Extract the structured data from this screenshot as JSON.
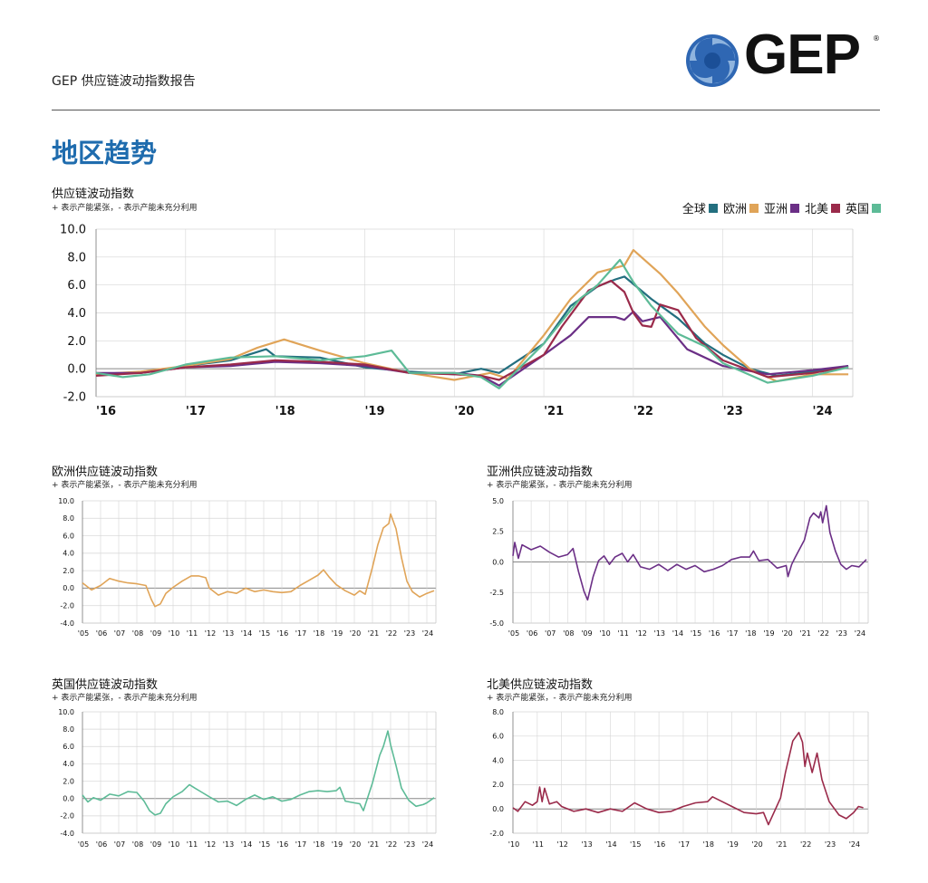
{
  "header": {
    "title": "GEP 供应链波动指数报告",
    "logo_text": "GEP",
    "logo_reg": "®"
  },
  "section": {
    "title": "地区趋势"
  },
  "colors": {
    "global": "#236f7f",
    "europe": "#e0a458",
    "asia": "#6b2f86",
    "northamerica": "#9a2a4a",
    "uk": "#5dbb97",
    "zero_line": "#888888",
    "grid": "#d6d6d6"
  },
  "chart_data": [
    {
      "id": "main",
      "type": "line",
      "title": "供应链波动指数",
      "subtitle": "+ 表示产能紧张，- 表示产能未充分利用",
      "ylim": [
        -2,
        10
      ],
      "yticks": [
        "10.0",
        "8.0",
        "6.0",
        "4.0",
        "2.0",
        "0.0",
        "-2.0"
      ],
      "ytick_values": [
        10,
        8,
        6,
        4,
        2,
        0,
        -2
      ],
      "xlim": [
        2016,
        2024.45
      ],
      "xticks": [
        "'16",
        "'17",
        "'18",
        "'19",
        "'20",
        "'21",
        "'22",
        "'23",
        "'24"
      ],
      "xtick_values": [
        2016,
        2017,
        2018,
        2019,
        2020,
        2021,
        2022,
        2023,
        2024
      ],
      "legend": [
        "全球",
        "欧洲",
        "亚洲",
        "北美",
        "英国"
      ],
      "series": [
        {
          "name": "全球",
          "color_key": "global",
          "x": [
            2016,
            2016.5,
            2017,
            2017.5,
            2017.9,
            2018,
            2018.5,
            2019,
            2019.5,
            2020,
            2020.3,
            2020.5,
            2021,
            2021.3,
            2021.6,
            2021.8,
            2021.9,
            2022.2,
            2022.5,
            2022.8,
            2023,
            2023.3,
            2023.6,
            2024,
            2024.4
          ],
          "values": [
            -0.4,
            -0.3,
            0.2,
            0.6,
            1.4,
            0.9,
            0.8,
            0.1,
            -0.2,
            -0.4,
            0.0,
            -0.3,
            1.8,
            4.5,
            5.9,
            6.4,
            6.6,
            5.0,
            3.6,
            1.8,
            1.0,
            0.0,
            -0.5,
            -0.2,
            0.2
          ]
        },
        {
          "name": "欧洲",
          "color_key": "europe",
          "x": [
            2016,
            2016.5,
            2017,
            2017.5,
            2017.8,
            2018.1,
            2018.5,
            2019,
            2019.5,
            2020,
            2020.4,
            2020.6,
            2021,
            2021.3,
            2021.6,
            2021.9,
            2022,
            2022.3,
            2022.5,
            2022.8,
            2023,
            2023.3,
            2023.6,
            2024,
            2024.4
          ],
          "values": [
            -0.4,
            -0.2,
            0.2,
            0.7,
            1.5,
            2.1,
            1.3,
            0.4,
            -0.3,
            -0.8,
            -0.3,
            -0.7,
            2.4,
            5.0,
            6.9,
            7.4,
            8.5,
            6.8,
            5.4,
            3.0,
            1.7,
            0.0,
            -0.9,
            -0.4,
            -0.4
          ]
        },
        {
          "name": "亚洲",
          "color_key": "asia",
          "x": [
            2016,
            2016.5,
            2017,
            2017.5,
            2018,
            2018.5,
            2019,
            2019.5,
            2020,
            2020.3,
            2020.5,
            2021,
            2021.3,
            2021.5,
            2021.8,
            2021.9,
            2022,
            2022.1,
            2022.3,
            2022.6,
            2023,
            2023.5,
            2024,
            2024.4
          ],
          "values": [
            -0.3,
            -0.3,
            0.1,
            0.2,
            0.5,
            0.4,
            0.2,
            -0.3,
            -0.3,
            -0.5,
            -1.2,
            1.0,
            2.4,
            3.7,
            3.7,
            3.5,
            4.1,
            3.4,
            3.7,
            1.4,
            0.2,
            -0.4,
            -0.1,
            0.2
          ]
        },
        {
          "name": "北美",
          "color_key": "northamerica",
          "x": [
            2016,
            2016.5,
            2017,
            2017.5,
            2018,
            2018.5,
            2019,
            2019.5,
            2020,
            2020.3,
            2020.5,
            2021,
            2021.2,
            2021.5,
            2021.75,
            2021.9,
            2022,
            2022.1,
            2022.2,
            2022.3,
            2022.5,
            2022.7,
            2023,
            2023.5,
            2024,
            2024.4
          ],
          "values": [
            -0.5,
            -0.3,
            0.1,
            0.3,
            0.6,
            0.5,
            0.3,
            -0.3,
            -0.4,
            -0.5,
            -0.8,
            1.0,
            3.0,
            5.6,
            6.3,
            5.5,
            4.0,
            3.1,
            3.0,
            4.6,
            4.2,
            2.2,
            0.6,
            -0.6,
            -0.3,
            0.1
          ]
        },
        {
          "name": "英国",
          "color_key": "uk",
          "x": [
            2016,
            2016.3,
            2016.6,
            2017,
            2017.5,
            2018,
            2018.5,
            2019,
            2019.3,
            2019.5,
            2020,
            2020.3,
            2020.5,
            2021,
            2021.4,
            2021.6,
            2021.85,
            2022,
            2022.2,
            2022.5,
            2022.8,
            2023,
            2023.5,
            2024,
            2024.4
          ],
          "values": [
            -0.3,
            -0.6,
            -0.4,
            0.3,
            0.8,
            0.9,
            0.6,
            0.9,
            1.3,
            -0.3,
            -0.3,
            -0.6,
            -1.4,
            1.8,
            5.0,
            6.0,
            7.8,
            6.2,
            4.5,
            2.5,
            1.6,
            0.4,
            -1.0,
            -0.5,
            0.1
          ]
        }
      ]
    },
    {
      "id": "europe",
      "type": "line",
      "title": "欧洲供应链波动指数",
      "subtitle": "+ 表示产能紧张，- 表示产能未充分利用",
      "ylim": [
        -4,
        10
      ],
      "yticks": [
        "10.0",
        "8.0",
        "6.0",
        "4.0",
        "2.0",
        "0.0",
        "-2.0",
        "-4.0"
      ],
      "ytick_values": [
        10,
        8,
        6,
        4,
        2,
        0,
        -2,
        -4
      ],
      "xlim": [
        2005,
        2024.5
      ],
      "xticks": [
        "'05",
        "'06",
        "'07",
        "'08",
        "'09",
        "'10",
        "'11",
        "'12",
        "'13",
        "'14",
        "'15",
        "'16",
        "'17",
        "'18",
        "'19",
        "'20",
        "'21",
        "'22",
        "'23",
        "'24"
      ],
      "xtick_values": [
        2005,
        2006,
        2007,
        2008,
        2009,
        2010,
        2011,
        2012,
        2013,
        2014,
        2015,
        2016,
        2017,
        2018,
        2019,
        2020,
        2021,
        2022,
        2023,
        2024
      ],
      "series": [
        {
          "name": "欧洲",
          "color_key": "europe",
          "x": [
            2005,
            2005.5,
            2006,
            2006.5,
            2007,
            2007.5,
            2008,
            2008.5,
            2008.8,
            2009,
            2009.3,
            2009.6,
            2010,
            2010.5,
            2011,
            2011.4,
            2011.8,
            2012,
            2012.5,
            2013,
            2013.5,
            2014,
            2014.5,
            2015,
            2015.5,
            2016,
            2016.5,
            2017,
            2017.5,
            2018,
            2018.3,
            2018.6,
            2019,
            2019.5,
            2020,
            2020.3,
            2020.6,
            2021,
            2021.3,
            2021.6,
            2021.9,
            2022,
            2022.3,
            2022.6,
            2022.9,
            2023.2,
            2023.6,
            2024,
            2024.4
          ],
          "values": [
            0.6,
            -0.2,
            0.3,
            1.1,
            0.8,
            0.6,
            0.5,
            0.3,
            -1.3,
            -2.1,
            -1.8,
            -0.6,
            0.1,
            0.8,
            1.4,
            1.4,
            1.2,
            0.0,
            -0.8,
            -0.4,
            -0.6,
            0.0,
            -0.4,
            -0.2,
            -0.4,
            -0.5,
            -0.4,
            0.3,
            0.9,
            1.5,
            2.1,
            1.3,
            0.4,
            -0.3,
            -0.8,
            -0.3,
            -0.7,
            2.4,
            5.0,
            6.9,
            7.4,
            8.5,
            6.8,
            3.5,
            0.8,
            -0.4,
            -1.0,
            -0.6,
            -0.3
          ]
        }
      ]
    },
    {
      "id": "asia",
      "type": "line",
      "title": "亚洲供应链波动指数",
      "subtitle": "+ 表示产能紧张，- 表示产能未充分利用",
      "ylim": [
        -5,
        5
      ],
      "yticks": [
        "5.0",
        "2.5",
        "0.0",
        "-2.5",
        "-5.0"
      ],
      "ytick_values": [
        5,
        2.5,
        0,
        -2.5,
        -5
      ],
      "xlim": [
        2005,
        2024.5
      ],
      "xticks": [
        "'05",
        "'06",
        "'07",
        "'08",
        "'09",
        "'10",
        "'11",
        "'12",
        "'13",
        "'14",
        "'15",
        "'16",
        "'17",
        "'18",
        "'19",
        "'20",
        "'21",
        "'22",
        "'23",
        "'24"
      ],
      "xtick_values": [
        2005,
        2006,
        2007,
        2008,
        2009,
        2010,
        2011,
        2012,
        2013,
        2014,
        2015,
        2016,
        2017,
        2018,
        2019,
        2020,
        2021,
        2022,
        2023,
        2024
      ],
      "series": [
        {
          "name": "亚洲",
          "color_key": "asia",
          "x": [
            2005,
            2005.1,
            2005.3,
            2005.5,
            2006,
            2006.5,
            2007,
            2007.5,
            2008,
            2008.3,
            2008.6,
            2008.9,
            2009.1,
            2009.4,
            2009.7,
            2010,
            2010.3,
            2010.6,
            2011,
            2011.3,
            2011.6,
            2012,
            2012.5,
            2013,
            2013.5,
            2014,
            2014.5,
            2015,
            2015.5,
            2016,
            2016.5,
            2017,
            2017.5,
            2018,
            2018.2,
            2018.5,
            2019,
            2019.5,
            2020,
            2020.1,
            2020.3,
            2020.5,
            2021,
            2021.3,
            2021.5,
            2021.8,
            2021.9,
            2022,
            2022.2,
            2022.4,
            2022.7,
            2023,
            2023.3,
            2023.6,
            2024,
            2024.4
          ],
          "values": [
            0.5,
            1.6,
            0.3,
            1.4,
            1.0,
            1.3,
            0.8,
            0.4,
            0.6,
            1.1,
            -0.8,
            -2.4,
            -3.1,
            -1.2,
            0.1,
            0.5,
            -0.2,
            0.4,
            0.7,
            0.0,
            0.6,
            -0.4,
            -0.6,
            -0.2,
            -0.7,
            -0.2,
            -0.6,
            -0.3,
            -0.8,
            -0.6,
            -0.3,
            0.2,
            0.4,
            0.4,
            0.9,
            0.1,
            0.2,
            -0.5,
            -0.3,
            -1.2,
            -0.2,
            0.4,
            1.8,
            3.6,
            4.0,
            3.6,
            4.1,
            3.2,
            4.6,
            2.4,
            0.9,
            -0.2,
            -0.6,
            -0.3,
            -0.4,
            0.2
          ]
        }
      ]
    },
    {
      "id": "uk",
      "type": "line",
      "title": "英国供应链波动指数",
      "subtitle": "+ 表示产能紧张，- 表示产能未充分利用",
      "ylim": [
        -4,
        10
      ],
      "yticks": [
        "10.0",
        "8.0",
        "6.0",
        "4.0",
        "2.0",
        "0.0",
        "-2.0",
        "-4.0"
      ],
      "ytick_values": [
        10,
        8,
        6,
        4,
        2,
        0,
        -2,
        -4
      ],
      "xlim": [
        2005,
        2024.5
      ],
      "xticks": [
        "'05",
        "'06",
        "'07",
        "'08",
        "'09",
        "'10",
        "'11",
        "'12",
        "'13",
        "'14",
        "'15",
        "'16",
        "'17",
        "'18",
        "'19",
        "'20",
        "'21",
        "'22",
        "'23",
        "'24"
      ],
      "xtick_values": [
        2005,
        2006,
        2007,
        2008,
        2009,
        2010,
        2011,
        2012,
        2013,
        2014,
        2015,
        2016,
        2017,
        2018,
        2019,
        2020,
        2021,
        2022,
        2023,
        2024
      ],
      "series": [
        {
          "name": "英国",
          "color_key": "uk",
          "x": [
            2005,
            2005.3,
            2005.6,
            2006,
            2006.5,
            2007,
            2007.5,
            2008,
            2008.4,
            2008.7,
            2009,
            2009.3,
            2009.6,
            2010,
            2010.5,
            2010.9,
            2011.2,
            2011.6,
            2012,
            2012.5,
            2013,
            2013.5,
            2014,
            2014.5,
            2015,
            2015.5,
            2016,
            2016.5,
            2017,
            2017.5,
            2018,
            2018.5,
            2019,
            2019.2,
            2019.5,
            2020,
            2020.3,
            2020.5,
            2021,
            2021.4,
            2021.6,
            2021.85,
            2022,
            2022.3,
            2022.6,
            2023,
            2023.4,
            2023.8,
            2024,
            2024.4
          ],
          "values": [
            0.4,
            -0.4,
            0.1,
            -0.2,
            0.5,
            0.3,
            0.8,
            0.7,
            -0.3,
            -1.4,
            -1.9,
            -1.7,
            -0.6,
            0.2,
            0.8,
            1.6,
            1.2,
            0.7,
            0.2,
            -0.4,
            -0.3,
            -0.8,
            -0.1,
            0.4,
            -0.1,
            0.2,
            -0.3,
            -0.1,
            0.4,
            0.8,
            0.9,
            0.8,
            0.9,
            1.3,
            -0.3,
            -0.5,
            -0.6,
            -1.4,
            1.8,
            5.0,
            6.0,
            7.8,
            6.2,
            3.8,
            1.2,
            -0.2,
            -0.9,
            -0.7,
            -0.5,
            0.1
          ]
        }
      ]
    },
    {
      "id": "northamerica",
      "type": "line",
      "title": "北美供应链波动指数",
      "subtitle": "+ 表示产能紧张，- 表示产能未充分利用",
      "ylim": [
        -2,
        8
      ],
      "yticks": [
        "8.0",
        "6.0",
        "4.0",
        "2.0",
        "0.0",
        "-2.0"
      ],
      "ytick_values": [
        8,
        6,
        4,
        2,
        0,
        -2
      ],
      "xlim": [
        2010,
        2024.6
      ],
      "xticks": [
        "'10",
        "'11",
        "'12",
        "'13",
        "'14",
        "'15",
        "'16",
        "'17",
        "'18",
        "'19",
        "'20",
        "'21",
        "'22",
        "'23",
        "'24"
      ],
      "xtick_values": [
        2010,
        2011,
        2012,
        2013,
        2014,
        2015,
        2016,
        2017,
        2018,
        2019,
        2020,
        2021,
        2022,
        2023,
        2024
      ],
      "series": [
        {
          "name": "北美",
          "color_key": "northamerica",
          "x": [
            2010,
            2010.2,
            2010.5,
            2010.8,
            2011,
            2011.1,
            2011.2,
            2011.3,
            2011.5,
            2011.8,
            2012,
            2012.5,
            2013,
            2013.5,
            2014,
            2014.5,
            2015,
            2015.5,
            2016,
            2016.5,
            2017,
            2017.5,
            2018,
            2018.2,
            2018.5,
            2019,
            2019.5,
            2020,
            2020.3,
            2020.5,
            2021,
            2021.2,
            2021.5,
            2021.75,
            2021.9,
            2022,
            2022.1,
            2022.3,
            2022.5,
            2022.7,
            2023,
            2023.4,
            2023.7,
            2024,
            2024.2,
            2024.4
          ],
          "values": [
            0.1,
            -0.2,
            0.6,
            0.3,
            0.6,
            1.8,
            0.6,
            1.7,
            0.4,
            0.6,
            0.2,
            -0.2,
            0.0,
            -0.3,
            0.0,
            -0.2,
            0.5,
            0.0,
            -0.3,
            -0.2,
            0.2,
            0.5,
            0.6,
            1.0,
            0.7,
            0.2,
            -0.3,
            -0.4,
            -0.3,
            -1.3,
            0.9,
            3.0,
            5.6,
            6.3,
            5.5,
            3.5,
            4.6,
            3.0,
            4.6,
            2.4,
            0.6,
            -0.5,
            -0.8,
            -0.3,
            0.2,
            0.1
          ]
        }
      ]
    }
  ]
}
